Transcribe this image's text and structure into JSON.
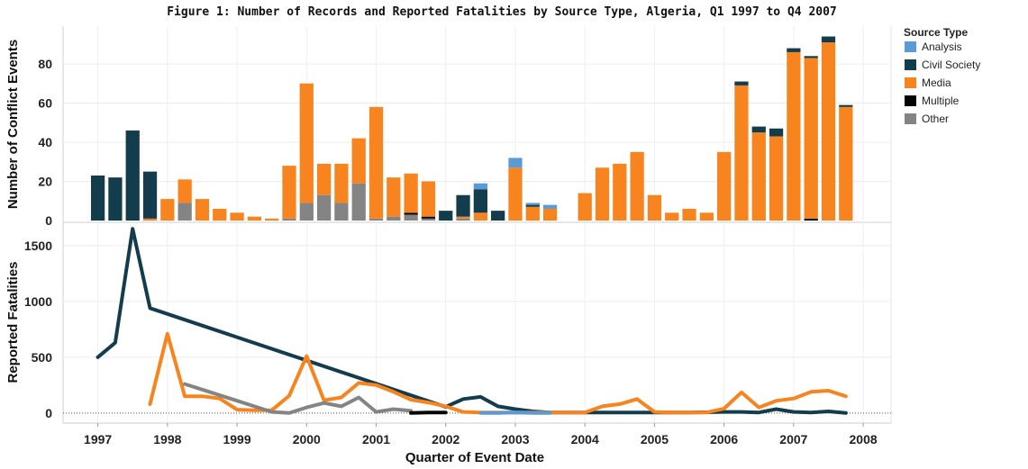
{
  "title": "Figure 1: Number of Records and Reported Fatalities by Source Type, Algeria, Q1 1997 to Q4 2007",
  "colors": {
    "Analysis": "#5b9bd5",
    "Civil Society": "#133c4c",
    "Media": "#f7841f",
    "Multiple": "#050505",
    "Other": "#848484"
  },
  "legend": {
    "title": "Source Type",
    "items": [
      "Analysis",
      "Civil Society",
      "Media",
      "Multiple",
      "Other"
    ]
  },
  "chart_data": [
    {
      "type": "bar",
      "stacked": true,
      "ylabel": "Number of Conflict Events",
      "ylim": [
        0,
        97
      ],
      "yticks": [
        0,
        20,
        40,
        60,
        80
      ],
      "grid": true,
      "legend_placement": "right",
      "categories": [
        "1997Q1",
        "1997Q2",
        "1997Q3",
        "1997Q4",
        "1998Q1",
        "1998Q2",
        "1998Q3",
        "1998Q4",
        "1999Q1",
        "1999Q2",
        "1999Q3",
        "1999Q4",
        "2000Q1",
        "2000Q2",
        "2000Q3",
        "2000Q4",
        "2001Q1",
        "2001Q2",
        "2001Q3",
        "2001Q4",
        "2002Q1",
        "2002Q2",
        "2002Q3",
        "2002Q4",
        "2003Q1",
        "2003Q2",
        "2003Q3",
        "2003Q4",
        "2004Q1",
        "2004Q2",
        "2004Q3",
        "2004Q4",
        "2005Q1",
        "2005Q2",
        "2005Q3",
        "2005Q4",
        "2006Q1",
        "2006Q2",
        "2006Q3",
        "2006Q4",
        "2007Q1",
        "2007Q2",
        "2007Q3",
        "2007Q4"
      ],
      "series": [
        {
          "name": "Other",
          "values": [
            0,
            0,
            0,
            0,
            0,
            9,
            0,
            0,
            0,
            0,
            0,
            1,
            9,
            13,
            9,
            19,
            1,
            2,
            3,
            1,
            0,
            1,
            0,
            0,
            0,
            0,
            0,
            0,
            0,
            0,
            0,
            0,
            0,
            0,
            0,
            0,
            0,
            0,
            0,
            0,
            0,
            0,
            0,
            0
          ]
        },
        {
          "name": "Multiple",
          "values": [
            0,
            0,
            0,
            0,
            0,
            0,
            0,
            0,
            0,
            0,
            0,
            0,
            0,
            0,
            0,
            0,
            0,
            0,
            1,
            1,
            0,
            0,
            0,
            0,
            0,
            0,
            0,
            0,
            0,
            0,
            0,
            0,
            0,
            0,
            0,
            0,
            0,
            0,
            0,
            0,
            0,
            1,
            0,
            0
          ]
        },
        {
          "name": "Media",
          "values": [
            0,
            0,
            0,
            1,
            11,
            12,
            11,
            6,
            4,
            2,
            1,
            27,
            61,
            16,
            20,
            23,
            57,
            20,
            20,
            18,
            0,
            1,
            4,
            0,
            27,
            7,
            6,
            0,
            14,
            27,
            29,
            35,
            13,
            4,
            6,
            4,
            35,
            69,
            45,
            43,
            86,
            82,
            91,
            58
          ]
        },
        {
          "name": "Civil Society",
          "values": [
            23,
            22,
            46,
            24,
            0,
            0,
            0,
            0,
            0,
            0,
            0,
            0,
            0,
            0,
            0,
            0,
            0,
            0,
            0,
            0,
            5,
            11,
            12,
            5,
            0,
            1,
            0,
            0,
            0,
            0,
            0,
            0,
            0,
            0,
            0,
            0,
            0,
            2,
            3,
            4,
            2,
            1,
            3,
            1
          ]
        },
        {
          "name": "Analysis",
          "values": [
            0,
            0,
            0,
            0,
            0,
            0,
            0,
            0,
            0,
            0,
            0,
            0,
            0,
            0,
            0,
            0,
            0,
            0,
            0,
            0,
            0,
            0,
            3,
            0,
            5,
            1,
            2,
            0,
            0,
            0,
            0,
            0,
            0,
            0,
            0,
            0,
            0,
            0,
            0,
            0,
            0,
            0,
            0,
            0
          ]
        }
      ]
    },
    {
      "type": "line",
      "xlabel": "Quarter of Event Date",
      "ylabel": "Reported Fatalities",
      "ylim": [
        -90,
        1700
      ],
      "yticks": [
        0,
        500,
        1000,
        1500
      ],
      "xticks": [
        "1997",
        "1998",
        "1999",
        "2000",
        "2001",
        "2002",
        "2003",
        "2004",
        "2005",
        "2006",
        "2007",
        "2008"
      ],
      "grid": true,
      "series": [
        {
          "name": "Civil Society",
          "points": [
            [
              1997.0,
              500
            ],
            [
              1997.25,
              630
            ],
            [
              1997.5,
              1650
            ],
            [
              1997.75,
              940
            ],
            [
              2002.0,
              55
            ],
            [
              2002.25,
              125
            ],
            [
              2002.5,
              145
            ],
            [
              2002.75,
              60
            ],
            [
              2003.0,
              35
            ],
            [
              2003.25,
              15
            ],
            [
              2003.5,
              5
            ],
            [
              2004.0,
              5
            ],
            [
              2004.5,
              5
            ],
            [
              2005.0,
              5
            ],
            [
              2005.5,
              5
            ],
            [
              2006.0,
              10
            ],
            [
              2006.25,
              10
            ],
            [
              2006.5,
              5
            ],
            [
              2006.75,
              35
            ],
            [
              2007.0,
              10
            ],
            [
              2007.25,
              5
            ],
            [
              2007.5,
              15
            ],
            [
              2007.75,
              0
            ]
          ]
        },
        {
          "name": "Media",
          "points": [
            [
              1997.75,
              80
            ],
            [
              1998.0,
              710
            ],
            [
              1998.25,
              150
            ],
            [
              1998.5,
              150
            ],
            [
              1998.75,
              130
            ],
            [
              1999.0,
              30
            ],
            [
              1999.25,
              25
            ],
            [
              1999.5,
              25
            ],
            [
              1999.75,
              155
            ],
            [
              2000.0,
              510
            ],
            [
              2000.25,
              115
            ],
            [
              2000.5,
              140
            ],
            [
              2000.75,
              270
            ],
            [
              2001.0,
              250
            ],
            [
              2001.25,
              190
            ],
            [
              2001.5,
              120
            ],
            [
              2001.75,
              95
            ],
            [
              2002.0,
              60
            ],
            [
              2002.25,
              10
            ],
            [
              2002.5,
              5
            ],
            [
              2003.0,
              5
            ],
            [
              2003.5,
              5
            ],
            [
              2004.0,
              5
            ],
            [
              2004.25,
              60
            ],
            [
              2004.5,
              80
            ],
            [
              2004.75,
              125
            ],
            [
              2005.0,
              10
            ],
            [
              2005.25,
              5
            ],
            [
              2005.5,
              5
            ],
            [
              2005.75,
              5
            ],
            [
              2006.0,
              40
            ],
            [
              2006.25,
              185
            ],
            [
              2006.5,
              50
            ],
            [
              2006.75,
              110
            ],
            [
              2007.0,
              130
            ],
            [
              2007.25,
              190
            ],
            [
              2007.5,
              200
            ],
            [
              2007.75,
              150
            ]
          ]
        },
        {
          "name": "Other",
          "points": [
            [
              1998.25,
              260
            ],
            [
              1998.5,
              210
            ],
            [
              1998.75,
              160
            ],
            [
              1999.0,
              110
            ],
            [
              1999.25,
              60
            ],
            [
              1999.5,
              10
            ],
            [
              1999.75,
              0
            ],
            [
              2000.0,
              50
            ],
            [
              2000.25,
              90
            ],
            [
              2000.5,
              60
            ],
            [
              2000.75,
              140
            ],
            [
              2001.0,
              10
            ],
            [
              2001.25,
              35
            ],
            [
              2001.5,
              20
            ]
          ]
        },
        {
          "name": "Analysis",
          "points": [
            [
              2002.5,
              0
            ],
            [
              2002.75,
              0
            ],
            [
              2003.0,
              5
            ],
            [
              2003.25,
              0
            ],
            [
              2003.5,
              0
            ]
          ]
        },
        {
          "name": "Multiple",
          "points": [
            [
              2001.5,
              0
            ],
            [
              2001.75,
              5
            ],
            [
              2002.0,
              5
            ]
          ]
        }
      ]
    }
  ]
}
